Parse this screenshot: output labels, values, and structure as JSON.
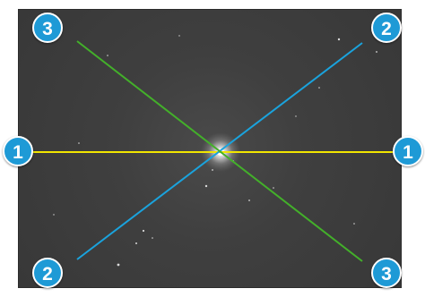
{
  "colors": {
    "line_1": "#f2e600",
    "line_2": "#1aa3dd",
    "line_3": "#43b02a",
    "badge": "#1e9ad6",
    "photo_bg": "#3d3d3d"
  },
  "image": {
    "subject": "bright-star-icon"
  },
  "markers": {
    "line_1_left": "1",
    "line_1_right": "1",
    "line_2_top": "2",
    "line_2_bottom": "2",
    "line_3_top": "3",
    "line_3_bottom": "3"
  }
}
